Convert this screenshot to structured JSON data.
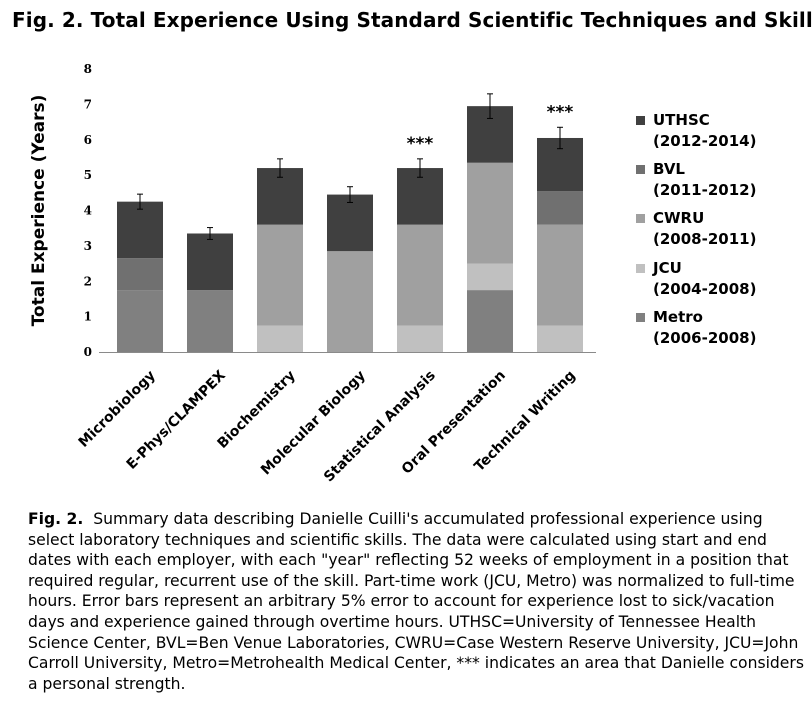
{
  "title": "Fig. 2. Total Experience  Using Standard Scientific Techniques  and Skills",
  "chart_data": {
    "type": "bar",
    "stacked": true,
    "title": "Fig. 2. Total Experience  Using Standard Scientific Techniques  and Skills",
    "ylabel": "Total Experience (Years)",
    "xlabel": "",
    "ylim": [
      0,
      8
    ],
    "yticks": [
      "0",
      "1",
      "2",
      "3",
      "4",
      "5",
      "6",
      "7",
      "8"
    ],
    "categories": [
      "Microbiology",
      "E-Phys/CLAMPEX",
      "Biochemistry",
      "Molecular Biology",
      "Statistical Analysis",
      "Oral Presentation",
      "Technical Writing"
    ],
    "series": [
      {
        "name": "Metro",
        "legend": [
          "Metro",
          "(2006-2008)"
        ],
        "color": "#808080",
        "values": [
          1.75,
          1.75,
          0,
          0,
          0,
          1.75,
          0
        ]
      },
      {
        "name": "JCU",
        "legend": [
          "JCU",
          "(2004-2008)"
        ],
        "color": "#c0c0c0",
        "values": [
          0,
          0,
          0.75,
          0,
          0.75,
          0.75,
          0.75
        ]
      },
      {
        "name": "CWRU",
        "legend": [
          "CWRU",
          "(2008-2011)"
        ],
        "color": "#a0a0a0",
        "values": [
          0,
          0,
          2.85,
          2.85,
          2.85,
          2.85,
          2.85
        ]
      },
      {
        "name": "BVL",
        "legend": [
          "BVL",
          "(2011-2012)"
        ],
        "color": "#707070",
        "values": [
          0.9,
          0,
          0,
          0,
          0,
          0,
          0.95
        ]
      },
      {
        "name": "UTHSC",
        "legend": [
          "UTHSC",
          "(2012-2014)"
        ],
        "color": "#404040",
        "values": [
          1.6,
          1.6,
          1.6,
          1.6,
          1.6,
          1.6,
          1.5
        ]
      }
    ],
    "error_bar_fraction": 0.05,
    "annotations": [
      {
        "category": "Statistical Analysis",
        "text": "***"
      },
      {
        "category": "Technical Writing",
        "text": "***"
      }
    ],
    "legend_position": "right"
  },
  "caption": {
    "label": "Fig. 2.",
    "text": "Summary data describing Danielle Cuilli's accumulated professional experience using select laboratory techniques and scientific skills.  The data were calculated using start and end dates with each employer, with each \"year\" reflecting 52 weeks of employment in a position that required regular, recurrent use of the skill.  Part-time work (JCU, Metro) was normalized to full-time hours.  Error bars represent an arbitrary 5% error to account for experience lost to sick/vacation days and experience gained through overtime hours.  UTHSC=University of Tennessee Health Science Center, BVL=Ben Venue Laboratories, CWRU=Case Western Reserve University, JCU=John Carroll University,  Metro=Metrohealth Medical Center, *** indicates an area that Danielle considers a personal strength."
  }
}
